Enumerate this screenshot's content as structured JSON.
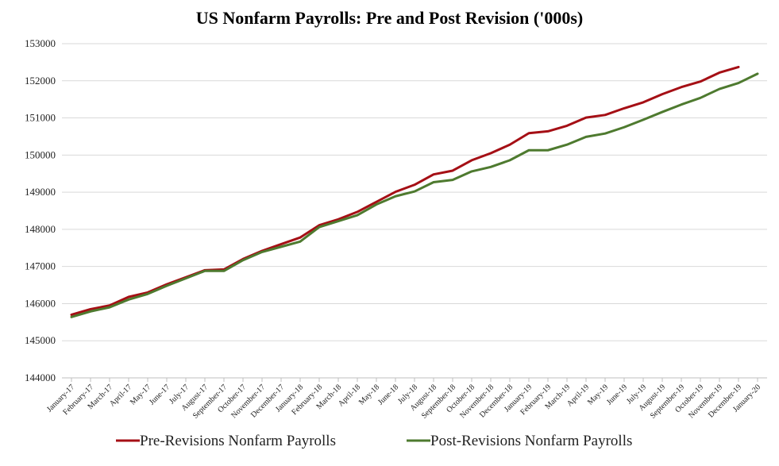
{
  "chart_data": {
    "type": "line",
    "title": "US Nonfarm Payrolls: Pre and Post Revision ('000s)",
    "xlabel": "",
    "ylabel": "",
    "ylim": [
      144000,
      153000
    ],
    "yticks": [
      144000,
      145000,
      146000,
      147000,
      148000,
      149000,
      150000,
      151000,
      152000,
      153000
    ],
    "ytick_labels": [
      "144000",
      "145000",
      "146000",
      "147000",
      "148000",
      "149000",
      "150000",
      "151000",
      "152000",
      "153000"
    ],
    "grid": true,
    "legend_position": "bottom",
    "categories": [
      "January-17",
      "February-17",
      "March-17",
      "April-17",
      "May-17",
      "June-17",
      "July-17",
      "August-17",
      "September-17",
      "October-17",
      "November-17",
      "December-17",
      "January-18",
      "February-18",
      "March-18",
      "April-18",
      "May-18",
      "June-18",
      "July-18",
      "August-18",
      "September-18",
      "October-18",
      "November-18",
      "December-18",
      "January-19",
      "February-19",
      "March-19",
      "April-19",
      "May-19",
      "June-19",
      "July-19",
      "August-19",
      "September-19",
      "October-19",
      "November-19",
      "December-19",
      "January-20"
    ],
    "series": [
      {
        "name": "Pre-Revisions Nonfarm Payrolls",
        "color": "#a50f15",
        "values": [
          145700,
          145850,
          145950,
          146180,
          146300,
          146520,
          146710,
          146900,
          146920,
          147200,
          147420,
          147600,
          147780,
          148110,
          148270,
          148470,
          148740,
          149010,
          149200,
          149480,
          149580,
          149860,
          150050,
          150280,
          150590,
          150640,
          150790,
          151010,
          151080,
          151260,
          151420,
          151640,
          151830,
          151980,
          152220,
          152370,
          null
        ]
      },
      {
        "name": "Post-Revisions Nonfarm Payrolls",
        "color": "#4e7a2f",
        "values": [
          145640,
          145790,
          145900,
          146110,
          146260,
          146480,
          146680,
          146880,
          146880,
          147170,
          147390,
          147530,
          147670,
          148060,
          148220,
          148380,
          148670,
          148890,
          149020,
          149270,
          149330,
          149560,
          149680,
          149860,
          150130,
          150130,
          150280,
          150490,
          150580,
          150750,
          150950,
          151160,
          151360,
          151540,
          151780,
          151940,
          152190
        ]
      }
    ]
  }
}
